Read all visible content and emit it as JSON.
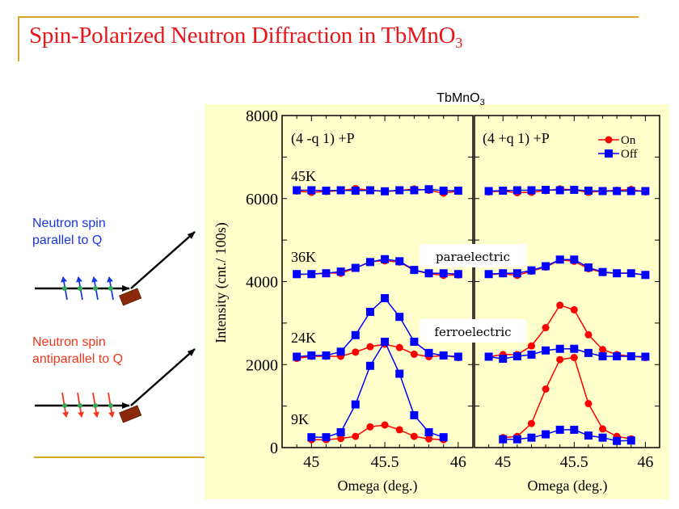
{
  "slide": {
    "title_main": "Spin-Polarized Neutron Diffraction in TbMnO",
    "title_sub": "3",
    "accent_color": "#d4a820",
    "title_color": "#e8161b"
  },
  "diagram": {
    "parallel_label_line1": "Neutron spin",
    "parallel_label_line2": "parallel to Q",
    "parallel_color": "#1a35e6",
    "antiparallel_label_line1": "Neutron spin",
    "antiparallel_label_line2": "antiparallel to Q",
    "antiparallel_color": "#f2361c",
    "sample_color": "#8b2a0a",
    "spin_dot_color": "#33aa55"
  },
  "chart_data": {
    "type": "line",
    "title_main": "TbMnO",
    "title_sub": "3",
    "ylabel": "Intensity (cnt./ 100s)",
    "xlabel": "Omega (deg.)",
    "ylim": [
      0,
      8000
    ],
    "yticks": [
      0,
      2000,
      4000,
      6000,
      8000
    ],
    "ytick_labels": [
      "0",
      "2000",
      "4000",
      "6000",
      "8000"
    ],
    "xlim": [
      44.8,
      46.1
    ],
    "xticks": [
      45,
      45.5,
      46
    ],
    "xtick_labels": [
      "45",
      "45.5",
      "46"
    ],
    "legend": [
      {
        "name": "On",
        "color": "#ff0000",
        "marker": "circle"
      },
      {
        "name": "Off",
        "color": "#0000ff",
        "marker": "square"
      }
    ],
    "legend_position": "top-right of right panel",
    "annotations": [
      "paraelectric",
      "ferroelectric"
    ],
    "panels": [
      {
        "label": "(4 -q 1) +P",
        "temperature_labels": [
          "45K",
          "36K",
          "24K",
          "9K"
        ],
        "datasets": [
          {
            "temperature": "45K",
            "x": [
              44.9,
              45.0,
              45.1,
              45.2,
              45.3,
              45.4,
              45.5,
              45.6,
              45.7,
              45.8,
              45.9,
              46.0
            ],
            "on": [
              6180,
              6150,
              6170,
              6190,
              6240,
              6200,
              6170,
              6190,
              6230,
              6200,
              6130,
              6180
            ],
            "off": [
              6200,
              6200,
              6190,
              6200,
              6190,
              6200,
              6175,
              6200,
              6200,
              6225,
              6190,
              6190
            ]
          },
          {
            "temperature": "36K",
            "x": [
              44.9,
              45.0,
              45.1,
              45.2,
              45.3,
              45.4,
              45.5,
              45.6,
              45.7,
              45.8,
              45.9,
              46.0
            ],
            "on": [
              4170,
              4180,
              4210,
              4200,
              4320,
              4480,
              4500,
              4470,
              4270,
              4190,
              4150,
              4160
            ],
            "off": [
              4180,
              4180,
              4200,
              4240,
              4330,
              4470,
              4540,
              4490,
              4280,
              4200,
              4200,
              4180
            ]
          },
          {
            "temperature": "24K",
            "x": [
              44.9,
              45.0,
              45.1,
              45.2,
              45.3,
              45.4,
              45.5,
              45.6,
              45.7,
              45.8,
              45.9,
              46.0
            ],
            "on": [
              2150,
              2200,
              2200,
              2200,
              2300,
              2430,
              2490,
              2410,
              2250,
              2190,
              2220,
              2170
            ],
            "off": [
              2190,
              2220,
              2220,
              2310,
              2710,
              3270,
              3600,
              3150,
              2550,
              2280,
              2220,
              2190
            ]
          },
          {
            "temperature": "9K",
            "x": [
              45.0,
              45.1,
              45.2,
              45.3,
              45.4,
              45.5,
              45.6,
              45.7,
              45.8,
              45.9
            ],
            "on": [
              190,
              190,
              220,
              270,
              500,
              545,
              430,
              270,
              210,
              190
            ],
            "off": [
              250,
              250,
              370,
              1040,
              1970,
              2550,
              1780,
              780,
              370,
              250
            ]
          }
        ]
      },
      {
        "label": "(4 +q 1) +P",
        "temperature_labels": [],
        "datasets": [
          {
            "temperature": "45K",
            "x": [
              44.9,
              45.0,
              45.1,
              45.2,
              45.3,
              45.4,
              45.5,
              45.6,
              45.7,
              45.8,
              45.9,
              46.0
            ],
            "on": [
              6160,
              6180,
              6140,
              6150,
              6190,
              6230,
              6210,
              6150,
              6180,
              6200,
              6220,
              6160
            ],
            "off": [
              6180,
              6190,
              6200,
              6200,
              6210,
              6200,
              6210,
              6190,
              6180,
              6180,
              6180,
              6180
            ]
          },
          {
            "temperature": "36K",
            "x": [
              44.9,
              45.0,
              45.1,
              45.2,
              45.3,
              45.4,
              45.5,
              45.6,
              45.7,
              45.8,
              45.9,
              46.0
            ],
            "on": [
              4170,
              4190,
              4150,
              4250,
              4350,
              4520,
              4490,
              4310,
              4220,
              4200,
              4210,
              4150
            ],
            "off": [
              4180,
              4200,
              4200,
              4270,
              4370,
              4530,
              4530,
              4340,
              4230,
              4200,
              4200,
              4160
            ]
          },
          {
            "temperature": "24K",
            "x": [
              44.9,
              45.0,
              45.1,
              45.2,
              45.3,
              45.4,
              45.5,
              45.6,
              45.7,
              45.8,
              45.9,
              46.0
            ],
            "on": [
              2190,
              2240,
              2240,
              2450,
              2890,
              3430,
              3320,
              2720,
              2360,
              2240,
              2200,
              2170
            ],
            "off": [
              2190,
              2140,
              2200,
              2240,
              2340,
              2380,
              2380,
              2280,
              2200,
              2200,
              2200,
              2190
            ]
          },
          {
            "temperature": "9K",
            "x": [
              45.0,
              45.1,
              45.2,
              45.3,
              45.4,
              45.5,
              45.6,
              45.7,
              45.8,
              45.9
            ],
            "on": [
              240,
              270,
              580,
              1410,
              2120,
              2170,
              1060,
              450,
              270,
              210
            ],
            "off": [
              200,
              200,
              240,
              320,
              430,
              430,
              290,
              240,
              160,
              170
            ]
          }
        ]
      }
    ]
  }
}
